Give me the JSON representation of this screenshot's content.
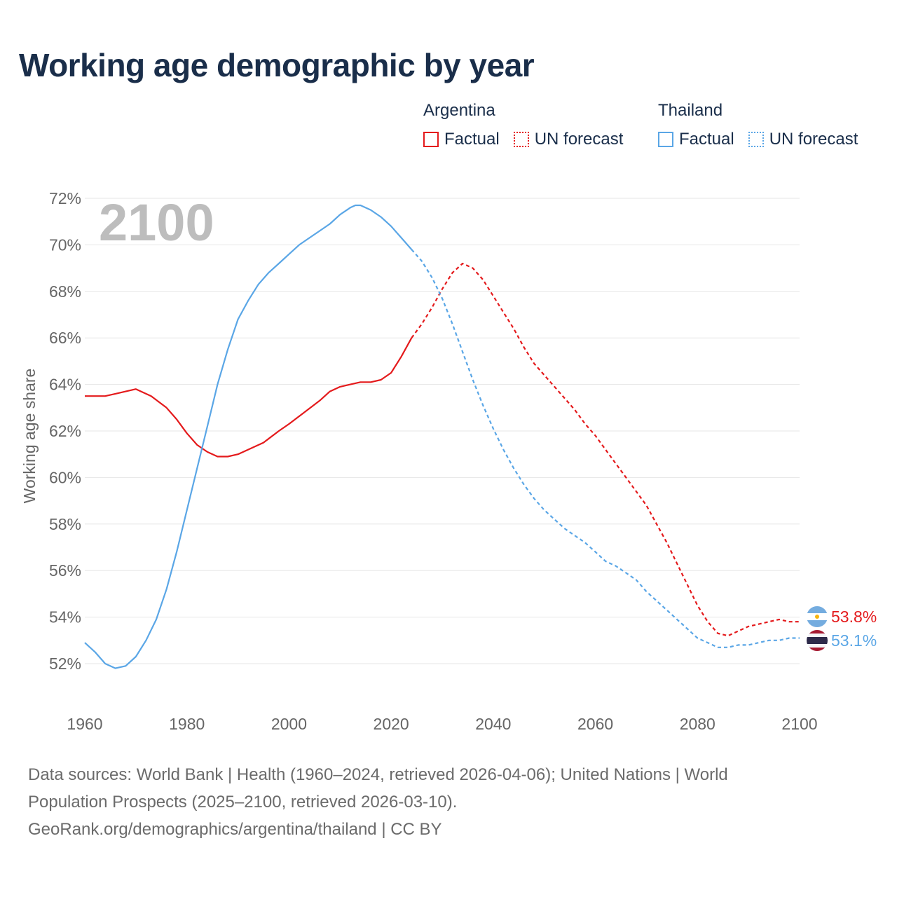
{
  "title": "Working age demographic by year",
  "legend": [
    {
      "country": "Argentina",
      "color": "#e41a1c",
      "factual_label": "Factual",
      "forecast_label": "UN forecast"
    },
    {
      "country": "Thailand",
      "color": "#5aa6e6",
      "factual_label": "Factual",
      "forecast_label": "UN forecast"
    }
  ],
  "chart_data": {
    "type": "line",
    "title": "Working age demographic by year",
    "xlabel": "",
    "ylabel": "Working age share",
    "xlim": [
      1960,
      2100
    ],
    "ylim": [
      51,
      72.5
    ],
    "x_ticks": [
      1960,
      1980,
      2000,
      2020,
      2040,
      2060,
      2080,
      2100
    ],
    "x_tick_labels": [
      "1960",
      "1980",
      "2000",
      "2020",
      "2040",
      "2060",
      "2080",
      "2100"
    ],
    "y_ticks": [
      52,
      54,
      56,
      58,
      60,
      62,
      64,
      66,
      68,
      70,
      72
    ],
    "y_tick_labels": [
      "52%",
      "54%",
      "56%",
      "58%",
      "60%",
      "62%",
      "64%",
      "66%",
      "68%",
      "70%",
      "72%"
    ],
    "grid": true,
    "year_label": "2100",
    "factual_end_year": 2024,
    "series": [
      {
        "name": "Argentina",
        "color": "#e41a1c",
        "end_label": "53.8%",
        "points": [
          [
            1960,
            63.5
          ],
          [
            1964,
            63.5
          ],
          [
            1966,
            63.6
          ],
          [
            1968,
            63.7
          ],
          [
            1970,
            63.8
          ],
          [
            1973,
            63.5
          ],
          [
            1976,
            63.0
          ],
          [
            1978,
            62.5
          ],
          [
            1980,
            61.9
          ],
          [
            1982,
            61.4
          ],
          [
            1984,
            61.1
          ],
          [
            1986,
            60.9
          ],
          [
            1988,
            60.9
          ],
          [
            1990,
            61.0
          ],
          [
            1992,
            61.2
          ],
          [
            1995,
            61.5
          ],
          [
            1998,
            62.0
          ],
          [
            2000,
            62.3
          ],
          [
            2003,
            62.8
          ],
          [
            2006,
            63.3
          ],
          [
            2008,
            63.7
          ],
          [
            2010,
            63.9
          ],
          [
            2012,
            64.0
          ],
          [
            2014,
            64.1
          ],
          [
            2016,
            64.1
          ],
          [
            2018,
            64.2
          ],
          [
            2020,
            64.5
          ],
          [
            2022,
            65.2
          ],
          [
            2024,
            66.0
          ],
          [
            2026,
            66.6
          ],
          [
            2028,
            67.3
          ],
          [
            2030,
            68.1
          ],
          [
            2032,
            68.8
          ],
          [
            2034,
            69.2
          ],
          [
            2036,
            69.0
          ],
          [
            2038,
            68.5
          ],
          [
            2040,
            67.8
          ],
          [
            2042,
            67.1
          ],
          [
            2044,
            66.4
          ],
          [
            2046,
            65.6
          ],
          [
            2048,
            64.9
          ],
          [
            2050,
            64.4
          ],
          [
            2052,
            63.9
          ],
          [
            2054,
            63.4
          ],
          [
            2056,
            62.9
          ],
          [
            2058,
            62.3
          ],
          [
            2060,
            61.8
          ],
          [
            2062,
            61.2
          ],
          [
            2064,
            60.6
          ],
          [
            2066,
            60.0
          ],
          [
            2068,
            59.4
          ],
          [
            2070,
            58.8
          ],
          [
            2072,
            58.0
          ],
          [
            2074,
            57.2
          ],
          [
            2076,
            56.3
          ],
          [
            2078,
            55.4
          ],
          [
            2080,
            54.5
          ],
          [
            2082,
            53.8
          ],
          [
            2084,
            53.3
          ],
          [
            2086,
            53.2
          ],
          [
            2088,
            53.4
          ],
          [
            2090,
            53.6
          ],
          [
            2092,
            53.7
          ],
          [
            2094,
            53.8
          ],
          [
            2096,
            53.9
          ],
          [
            2098,
            53.8
          ],
          [
            2100,
            53.8
          ]
        ]
      },
      {
        "name": "Thailand",
        "color": "#5aa6e6",
        "end_label": "53.1%",
        "points": [
          [
            1960,
            52.9
          ],
          [
            1962,
            52.5
          ],
          [
            1964,
            52.0
          ],
          [
            1966,
            51.8
          ],
          [
            1968,
            51.9
          ],
          [
            1970,
            52.3
          ],
          [
            1972,
            53.0
          ],
          [
            1974,
            53.9
          ],
          [
            1976,
            55.2
          ],
          [
            1978,
            56.8
          ],
          [
            1980,
            58.6
          ],
          [
            1982,
            60.4
          ],
          [
            1984,
            62.2
          ],
          [
            1986,
            64.0
          ],
          [
            1988,
            65.5
          ],
          [
            1990,
            66.8
          ],
          [
            1992,
            67.6
          ],
          [
            1994,
            68.3
          ],
          [
            1996,
            68.8
          ],
          [
            1998,
            69.2
          ],
          [
            2000,
            69.6
          ],
          [
            2002,
            70.0
          ],
          [
            2004,
            70.3
          ],
          [
            2006,
            70.6
          ],
          [
            2008,
            70.9
          ],
          [
            2010,
            71.3
          ],
          [
            2012,
            71.6
          ],
          [
            2013,
            71.7
          ],
          [
            2014,
            71.7
          ],
          [
            2016,
            71.5
          ],
          [
            2018,
            71.2
          ],
          [
            2020,
            70.8
          ],
          [
            2022,
            70.3
          ],
          [
            2024,
            69.8
          ],
          [
            2026,
            69.3
          ],
          [
            2028,
            68.6
          ],
          [
            2030,
            67.7
          ],
          [
            2032,
            66.6
          ],
          [
            2034,
            65.4
          ],
          [
            2036,
            64.2
          ],
          [
            2038,
            63.1
          ],
          [
            2040,
            62.1
          ],
          [
            2042,
            61.2
          ],
          [
            2044,
            60.4
          ],
          [
            2046,
            59.7
          ],
          [
            2048,
            59.1
          ],
          [
            2050,
            58.6
          ],
          [
            2052,
            58.2
          ],
          [
            2054,
            57.8
          ],
          [
            2056,
            57.5
          ],
          [
            2058,
            57.2
          ],
          [
            2060,
            56.8
          ],
          [
            2062,
            56.4
          ],
          [
            2064,
            56.2
          ],
          [
            2066,
            55.9
          ],
          [
            2068,
            55.6
          ],
          [
            2070,
            55.1
          ],
          [
            2072,
            54.7
          ],
          [
            2074,
            54.3
          ],
          [
            2076,
            53.9
          ],
          [
            2078,
            53.5
          ],
          [
            2080,
            53.1
          ],
          [
            2082,
            52.9
          ],
          [
            2084,
            52.7
          ],
          [
            2086,
            52.7
          ],
          [
            2088,
            52.8
          ],
          [
            2090,
            52.8
          ],
          [
            2092,
            52.9
          ],
          [
            2094,
            53.0
          ],
          [
            2096,
            53.0
          ],
          [
            2098,
            53.1
          ],
          [
            2100,
            53.1
          ]
        ]
      }
    ]
  },
  "source": {
    "line1": "Data sources: World Bank | Health (1960–2024, retrieved 2026-04-06); United Nations | World",
    "line2": "Population Prospects (2025–2100, retrieved 2026-03-10).",
    "line3": "GeoRank.org/demographics/argentina/thailand | CC BY"
  }
}
